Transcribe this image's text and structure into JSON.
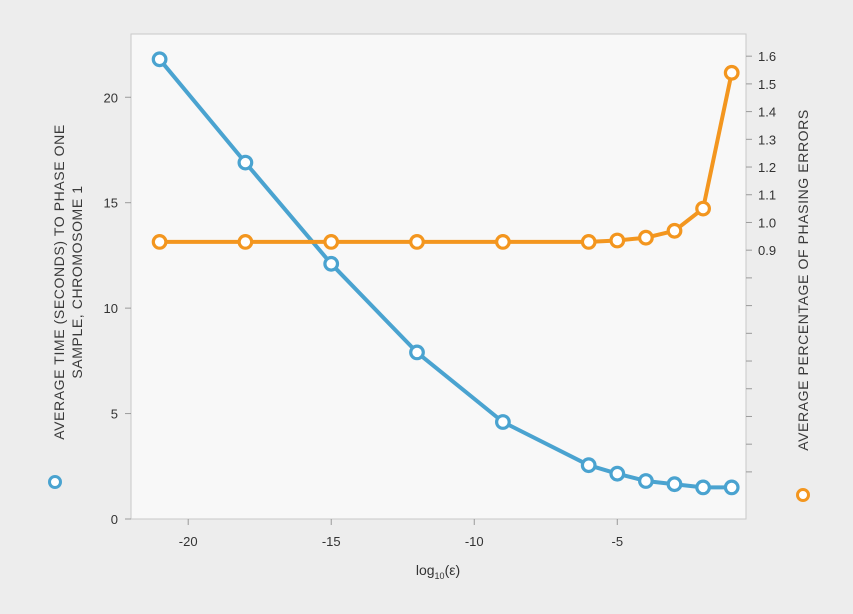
{
  "chart_data": {
    "type": "line",
    "title": "",
    "xlabel": "log",
    "xlabel_subscript": "10",
    "xlabel_suffix": "(ε)",
    "y_left_label_line1": "AVERAGE TIME (SECONDS) TO PHASE ONE",
    "y_left_label_line2": "SAMPLE, CHROMOSOME 1",
    "y_right_label": "AVERAGE PERCENTAGE OF PHASING ERRORS",
    "xlim": [
      -22,
      -0.5
    ],
    "xticks": [
      -20,
      -15,
      -10,
      -5
    ],
    "xtick_labels": [
      "-20",
      "-15",
      "-10",
      "-5"
    ],
    "y_left_lim": [
      0,
      23
    ],
    "y_left_ticks": [
      0,
      5,
      10,
      15,
      20
    ],
    "y_left_tick_labels": [
      "0",
      "5",
      "10",
      "15",
      "20"
    ],
    "y_right_lim": [
      -0.07,
      1.68
    ],
    "y_right_ticks": [
      0.9,
      1.0,
      1.1,
      1.2,
      1.3,
      1.4,
      1.5,
      1.6
    ],
    "y_right_tick_labels": [
      "0.9",
      "1.0",
      "1.1",
      "1.2",
      "1.3",
      "1.4",
      "1.5",
      "1.6"
    ],
    "y_right_minor_ticks": [
      0.1,
      0.2,
      0.3,
      0.4,
      0.5,
      0.6,
      0.7,
      0.8
    ],
    "series": [
      {
        "name": "time",
        "axis": "left",
        "color": "#4aa3d0",
        "x": [
          -21,
          -18,
          -15,
          -12,
          -9,
          -6,
          -5,
          -4,
          -3,
          -2,
          -1
        ],
        "y": [
          21.8,
          16.9,
          12.1,
          7.9,
          4.6,
          2.55,
          2.15,
          1.8,
          1.65,
          1.5,
          1.5
        ]
      },
      {
        "name": "errors",
        "axis": "right",
        "color": "#f3961f",
        "x": [
          -21,
          -18,
          -15,
          -12,
          -9,
          -6,
          -5,
          -4,
          -3,
          -2,
          -1
        ],
        "y": [
          0.93,
          0.93,
          0.93,
          0.93,
          0.93,
          0.93,
          0.935,
          0.945,
          0.97,
          1.05,
          1.54
        ]
      }
    ]
  }
}
